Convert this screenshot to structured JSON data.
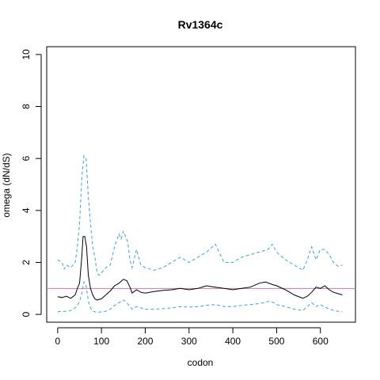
{
  "chart_data": {
    "type": "line",
    "title": "Rv1364c",
    "xlabel": "codon",
    "ylabel": "omega (dN/dS)",
    "xlim": [
      -25,
      680
    ],
    "ylim": [
      -0.3,
      10.3
    ],
    "xticks": [
      0,
      100,
      200,
      300,
      400,
      500,
      600
    ],
    "yticks": [
      0,
      2,
      4,
      6,
      8,
      10
    ],
    "grid": false,
    "reference_line": {
      "y": 1,
      "color": "#cc79a7"
    },
    "series": [
      {
        "style": "solid",
        "color": "#000000",
        "x": [
          0,
          10,
          20,
          30,
          40,
          45,
          50,
          55,
          58,
          62,
          66,
          70,
          75,
          80,
          85,
          90,
          95,
          100,
          110,
          120,
          130,
          140,
          150,
          158,
          165,
          170,
          180,
          190,
          200,
          220,
          240,
          260,
          280,
          300,
          320,
          340,
          360,
          380,
          400,
          420,
          440,
          460,
          475,
          490,
          500,
          520,
          540,
          560,
          570,
          580,
          590,
          600,
          610,
          620,
          630,
          640,
          650
        ],
        "values": [
          0.68,
          0.65,
          0.7,
          0.62,
          0.75,
          1.0,
          1.2,
          2.2,
          3.0,
          3.0,
          2.6,
          1.5,
          1.0,
          0.75,
          0.6,
          0.55,
          0.58,
          0.6,
          0.75,
          0.9,
          1.1,
          1.2,
          1.35,
          1.3,
          1.05,
          0.82,
          0.95,
          0.85,
          0.82,
          0.88,
          0.92,
          0.95,
          1.0,
          0.95,
          1.0,
          1.1,
          1.05,
          1.0,
          0.95,
          1.0,
          1.05,
          1.2,
          1.25,
          1.15,
          1.1,
          0.95,
          0.75,
          0.62,
          0.7,
          0.85,
          1.05,
          1.0,
          1.1,
          0.95,
          0.85,
          0.8,
          0.75
        ]
      },
      {
        "style": "dashed",
        "color": "#3aa0e0",
        "x": [
          0,
          10,
          15,
          20,
          30,
          40,
          45,
          50,
          55,
          60,
          65,
          70,
          75,
          80,
          85,
          90,
          95,
          100,
          110,
          120,
          130,
          140,
          145,
          150,
          160,
          165,
          170,
          180,
          190,
          200,
          220,
          240,
          260,
          280,
          300,
          320,
          340,
          360,
          380,
          400,
          420,
          440,
          460,
          480,
          490,
          500,
          520,
          540,
          560,
          570,
          580,
          590,
          600,
          610,
          620,
          630,
          640,
          650
        ],
        "values": [
          2.1,
          2.0,
          1.75,
          1.9,
          1.8,
          2.0,
          2.6,
          3.5,
          5.2,
          6.1,
          6.0,
          4.5,
          3.5,
          2.6,
          2.2,
          1.6,
          1.5,
          1.6,
          1.8,
          1.9,
          2.6,
          3.1,
          2.9,
          3.2,
          2.8,
          2.1,
          1.8,
          2.5,
          1.9,
          1.8,
          1.7,
          1.8,
          2.0,
          2.2,
          2.0,
          2.2,
          2.4,
          2.7,
          2.0,
          2.0,
          2.2,
          2.3,
          2.4,
          2.5,
          2.7,
          2.4,
          2.1,
          1.9,
          1.7,
          2.1,
          2.6,
          2.1,
          2.5,
          2.5,
          2.3,
          2.0,
          1.85,
          1.9
        ]
      },
      {
        "style": "dashed",
        "color": "#3aa0e0",
        "x": [
          0,
          10,
          20,
          30,
          40,
          45,
          50,
          55,
          60,
          65,
          70,
          75,
          80,
          90,
          100,
          110,
          120,
          130,
          140,
          150,
          155,
          165,
          170,
          180,
          190,
          200,
          220,
          240,
          260,
          280,
          300,
          320,
          340,
          360,
          380,
          400,
          420,
          440,
          460,
          470,
          480,
          490,
          500,
          520,
          540,
          560,
          570,
          580,
          590,
          600,
          610,
          620,
          630,
          640,
          650
        ],
        "values": [
          0.1,
          0.12,
          0.12,
          0.15,
          0.25,
          0.35,
          0.5,
          0.8,
          1.25,
          1.1,
          0.5,
          0.25,
          0.12,
          0.08,
          0.1,
          0.12,
          0.2,
          0.35,
          0.45,
          0.55,
          0.5,
          0.3,
          0.2,
          0.3,
          0.25,
          0.2,
          0.2,
          0.22,
          0.25,
          0.3,
          0.28,
          0.3,
          0.35,
          0.38,
          0.3,
          0.3,
          0.35,
          0.38,
          0.42,
          0.45,
          0.5,
          0.48,
          0.38,
          0.3,
          0.2,
          0.15,
          0.3,
          0.45,
          0.3,
          0.38,
          0.28,
          0.22,
          0.15,
          0.12,
          0.1
        ]
      }
    ]
  }
}
